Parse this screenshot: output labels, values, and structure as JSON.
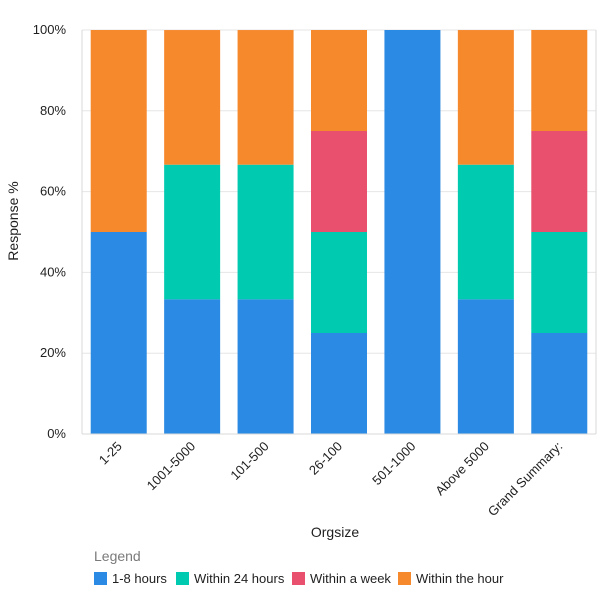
{
  "chart_data": {
    "type": "bar",
    "stacked": true,
    "title": "",
    "xlabel": "Orgsize",
    "ylabel": "Response %",
    "ylim": [
      0,
      100
    ],
    "yticks": [
      0,
      20,
      40,
      60,
      80,
      100
    ],
    "ytick_labels": [
      "0%",
      "20%",
      "40%",
      "60%",
      "80%",
      "100%"
    ],
    "categories": [
      "1-25",
      "1001-5000",
      "101-500",
      "26-100",
      "501-1000",
      "Above 5000",
      "Grand Summary:"
    ],
    "series": [
      {
        "name": "1-8 hours",
        "color": "#2b8ae3",
        "values": [
          50,
          33.33,
          33.33,
          25,
          100,
          33.33,
          25
        ]
      },
      {
        "name": "Within 24 hours",
        "color": "#00cbb1",
        "values": [
          0,
          33.33,
          33.33,
          25,
          0,
          33.33,
          25
        ]
      },
      {
        "name": "Within a week",
        "color": "#e8506d",
        "values": [
          0,
          0,
          0,
          25,
          0,
          0,
          25
        ]
      },
      {
        "name": "Within the hour",
        "color": "#f7892d",
        "values": [
          50,
          33.33,
          33.33,
          25,
          0,
          33.33,
          25
        ]
      }
    ]
  },
  "legend": {
    "title": "Legend",
    "items": [
      "1-8 hours",
      "Within 24 hours",
      "Within a week",
      "Within the hour"
    ]
  }
}
